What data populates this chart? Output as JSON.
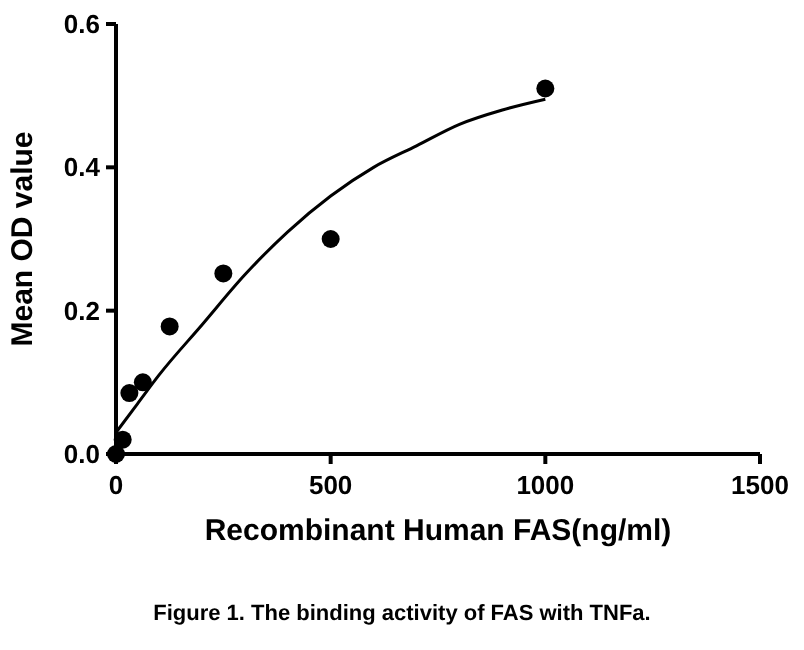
{
  "chart_data": {
    "type": "scatter",
    "xlabel": "Recombinant Human FAS(ng/ml)",
    "ylabel": "Mean OD value",
    "annotations": [
      "Figure 1. The binding activity of FAS with TNFa."
    ],
    "xlim": [
      0,
      1500
    ],
    "xticks": [
      0,
      500,
      1000,
      1500
    ],
    "ylim": [
      0,
      0.6
    ],
    "yticks": [
      {
        "value": 0,
        "label": "0.0"
      },
      {
        "value": 0.2,
        "label": "0.2"
      },
      {
        "value": 0.4,
        "label": "0.4"
      },
      {
        "value": 0.6,
        "label": "0.6"
      }
    ],
    "grid": false,
    "marker": "circle",
    "series": [
      {
        "color": "#000000",
        "x": [
          0,
          15.6,
          31.2,
          62.5,
          125,
          250,
          500,
          1000
        ],
        "values": [
          0,
          0.02,
          0.085,
          0.1,
          0.178,
          0.252,
          0.3,
          0.51
        ]
      },
      {
        "type": "line",
        "color": "#000000",
        "marker": "none",
        "line_style": "solid",
        "x": [
          0,
          50,
          100,
          200,
          300,
          400,
          500,
          600,
          700,
          800,
          900,
          1000
        ],
        "values": [
          0.03,
          0.07,
          0.11,
          0.18,
          0.25,
          0.31,
          0.36,
          0.4,
          0.43,
          0.46,
          0.48,
          0.495
        ]
      }
    ]
  }
}
